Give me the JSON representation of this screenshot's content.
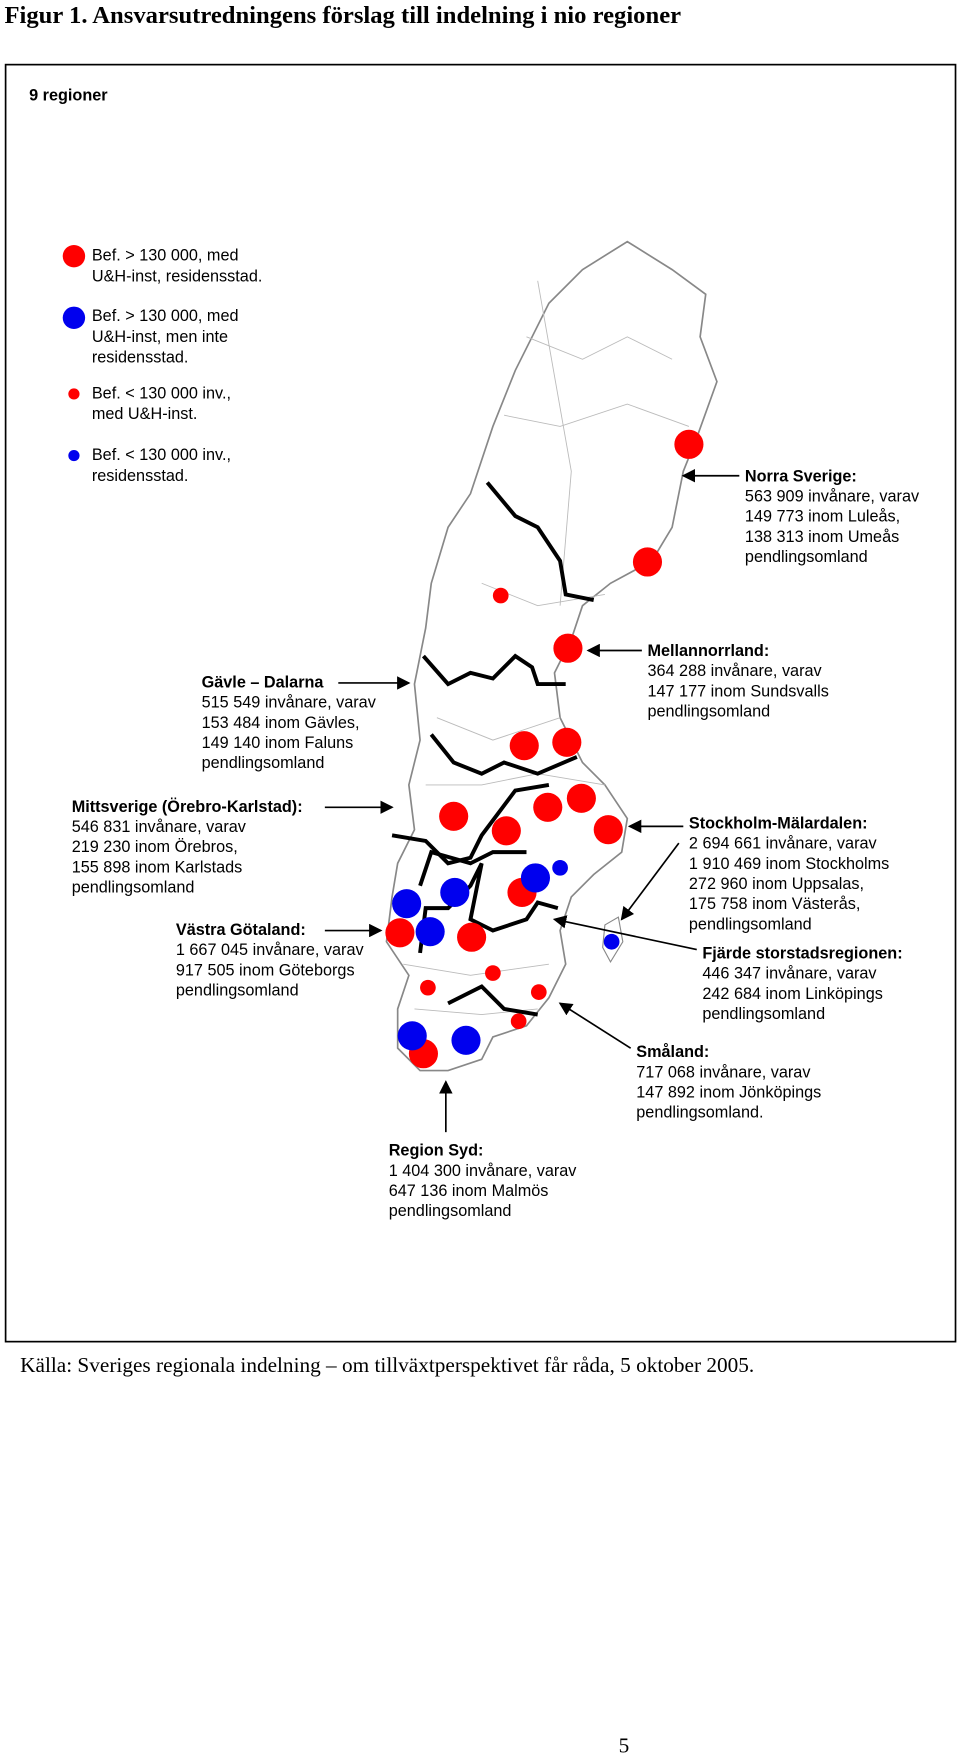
{
  "title": "Figur 1. Ansvarsutredningens förslag till indelning i nio regioner",
  "map": {
    "heading": "9 regioner",
    "legend": [
      {
        "lines": [
          "Bef. > 130 000, med",
          "U&H-inst, residensstad."
        ]
      },
      {
        "lines": [
          "Bef. > 130 000, med",
          "U&H-inst, men inte",
          "residensstad."
        ]
      },
      {
        "lines": [
          "Bef. < 130 000 inv.,",
          "med U&H-inst."
        ]
      },
      {
        "lines": [
          "Bef. < 130 000 inv.,",
          "residensstad."
        ]
      }
    ],
    "regions": [
      {
        "name": "Norra Sverige:",
        "lines": [
          "563 909 invånare, varav",
          "149 773 inom Luleås,",
          "138 313 inom Umeås",
          "pendlingsomland"
        ]
      },
      {
        "name": "Mellannorrland:",
        "lines": [
          "364 288 invånare, varav",
          "147 177 inom Sundsvalls",
          "pendlingsomland"
        ]
      },
      {
        "name": "Gävle – Dalarna",
        "lines": [
          "515 549 invånare, varav",
          "153 484 inom Gävles,",
          "149 140 inom Faluns",
          "pendlingsomland"
        ]
      },
      {
        "name": "Mittsverige (Örebro-Karlstad):",
        "lines": [
          "546 831 invånare, varav",
          "219 230 inom Örebros,",
          "155 898 inom Karlstads",
          "pendlingsomland"
        ]
      },
      {
        "name": "Stockholm-Mälardalen:",
        "lines": [
          "2 694 661 invånare, varav",
          "1 910 469 inom Stockholms",
          "272 960 inom Uppsalas,",
          "175 758 inom Västerås,",
          "pendlingsomland"
        ]
      },
      {
        "name": "Västra Götaland:",
        "lines": [
          "1 667 045 invånare, varav",
          "917 505 inom Göteborgs",
          "pendlingsomland"
        ]
      },
      {
        "name": "Fjärde storstadsregionen:",
        "lines": [
          "446 347 invånare, varav",
          "242 684 inom Linköpings",
          "pendlingsomland"
        ]
      },
      {
        "name": "Småland:",
        "lines": [
          "717 068 invånare, varav",
          "147 892 inom Jönköpings",
          "pendlingsomland."
        ]
      },
      {
        "name": "Region Syd:",
        "lines": [
          "1 404 300 invånare, varav",
          "647 136 inom Malmös",
          "pendlingsomland"
        ]
      }
    ]
  },
  "caption": "Källa: Sveriges regionala indelning – om  tillväxtperspektivet får råda, 5 oktober 2005.",
  "page_number": "5"
}
